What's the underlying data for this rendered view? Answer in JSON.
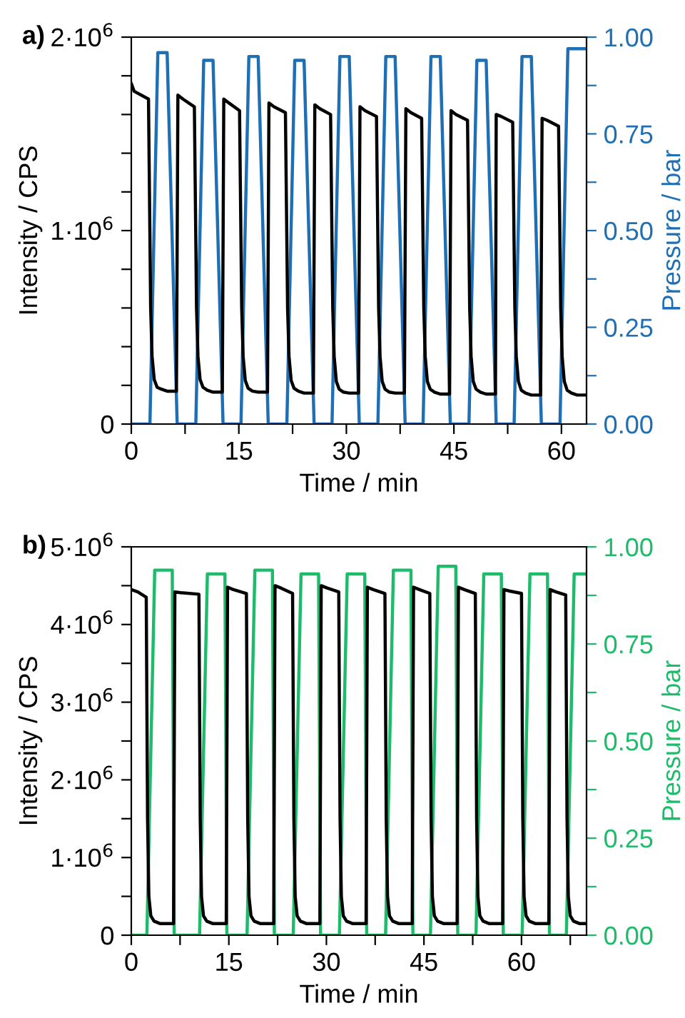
{
  "chart_data": [
    {
      "type": "line",
      "title": "a)",
      "xlabel": "Time / min",
      "ylabel": "Intensity / CPS",
      "y2label": "Pressure / bar",
      "xlim": [
        0,
        63.5
      ],
      "ylim": [
        0,
        2000000
      ],
      "y2lim": [
        0,
        1
      ],
      "xticks": [
        0,
        {
          "value": 7.5,
          "label": null
        },
        15,
        {
          "value": 22.5,
          "label": null
        },
        30,
        {
          "value": 37.5,
          "label": null
        },
        45,
        {
          "value": 52.5,
          "label": null
        },
        60
      ],
      "yticks": [
        0,
        {
          "value": 200000,
          "label": null
        },
        {
          "value": 400000,
          "label": null
        },
        {
          "value": 600000,
          "label": null
        },
        {
          "value": 800000,
          "label": null
        },
        {
          "value": 1000000,
          "label": "1·10$^{6}$"
        },
        {
          "value": 1200000,
          "label": null
        },
        {
          "value": 1400000,
          "label": null
        },
        {
          "value": 1600000,
          "label": null
        },
        {
          "value": 1800000,
          "label": null
        },
        {
          "value": 2000000,
          "label": "2·10$^{6}$"
        }
      ],
      "y2ticks": [
        {
          "value": 0,
          "label": "0.00"
        },
        {
          "value": 0.125,
          "label": null
        },
        {
          "value": 0.25,
          "label": "0.25"
        },
        {
          "value": 0.375,
          "label": null
        },
        {
          "value": 0.5,
          "label": "0.50"
        },
        {
          "value": 0.625,
          "label": null
        },
        {
          "value": 0.75,
          "label": "0.75"
        },
        {
          "value": 0.875,
          "label": null
        },
        {
          "value": 1,
          "label": "1.00"
        }
      ],
      "series": [
        {
          "color": "#000000",
          "x": [
            0,
            0.4,
            2.4,
            2.7,
            2.9,
            3.2,
            3.6,
            4.2,
            5.0,
            6.3,
            6.5,
            7.2,
            8.8,
            9.1,
            9.3,
            9.6,
            10.0,
            10.6,
            11.4,
            12.7,
            12.9,
            13.6,
            15.1,
            15.4,
            15.6,
            15.9,
            16.3,
            16.9,
            17.7,
            19.0,
            19.2,
            19.9,
            21.5,
            21.8,
            22.0,
            22.3,
            22.7,
            23.3,
            24.1,
            25.4,
            25.6,
            26.3,
            27.8,
            28.1,
            28.3,
            28.6,
            29.0,
            29.6,
            30.4,
            31.7,
            31.9,
            32.6,
            34.2,
            34.5,
            34.7,
            35.0,
            35.4,
            36.0,
            36.8,
            38.1,
            38.3,
            39.0,
            40.5,
            40.8,
            41.0,
            41.3,
            41.7,
            42.3,
            43.1,
            44.4,
            44.6,
            45.3,
            46.9,
            47.2,
            47.4,
            47.7,
            48.1,
            48.7,
            49.5,
            50.8,
            50.9,
            51.6,
            53.2,
            53.5,
            53.7,
            54.0,
            54.4,
            55.0,
            55.8,
            57.1,
            57.3,
            58.0,
            59.6,
            59.9,
            60.1,
            60.4,
            60.8,
            61.4,
            62.2,
            63.5
          ],
          "values": [
            1760000,
            1720000,
            1680000,
            600000,
            350000,
            230000,
            190000,
            180000,
            170000,
            170000,
            1700000,
            1680000,
            1640000,
            600000,
            350000,
            230000,
            190000,
            175000,
            165000,
            165000,
            1680000,
            1660000,
            1620000,
            600000,
            350000,
            225000,
            185000,
            170000,
            165000,
            165000,
            1660000,
            1640000,
            1610000,
            600000,
            350000,
            225000,
            185000,
            170000,
            160000,
            160000,
            1650000,
            1630000,
            1600000,
            600000,
            350000,
            220000,
            180000,
            165000,
            160000,
            160000,
            1640000,
            1620000,
            1590000,
            600000,
            350000,
            220000,
            180000,
            165000,
            160000,
            160000,
            1630000,
            1610000,
            1580000,
            600000,
            350000,
            220000,
            180000,
            165000,
            155000,
            155000,
            1620000,
            1600000,
            1570000,
            600000,
            350000,
            220000,
            180000,
            165000,
            155000,
            155000,
            1600000,
            1590000,
            1560000,
            600000,
            350000,
            220000,
            175000,
            160000,
            150000,
            150000,
            1580000,
            1570000,
            1540000,
            600000,
            350000,
            220000,
            175000,
            160000,
            150000,
            150000
          ]
        },
        {
          "color": "#1f6fb4",
          "axis": "y2",
          "x": [
            0,
            2.6,
            3.7,
            5.0,
            6.4,
            9.0,
            10.1,
            11.4,
            12.8,
            15.3,
            16.4,
            17.7,
            19.1,
            21.7,
            22.8,
            24.1,
            25.5,
            28.0,
            29.1,
            30.4,
            31.8,
            34.4,
            35.5,
            36.8,
            38.2,
            40.7,
            41.8,
            43.1,
            44.5,
            47.1,
            48.2,
            49.5,
            50.9,
            53.4,
            54.5,
            55.8,
            57.2,
            59.8,
            60.9,
            63.5
          ],
          "values": [
            0,
            0,
            0.96,
            0.96,
            0,
            0,
            0.94,
            0.94,
            0,
            0,
            0.95,
            0.95,
            0,
            0,
            0.94,
            0.94,
            0,
            0,
            0.95,
            0.95,
            0,
            0,
            0.95,
            0.95,
            0,
            0,
            0.95,
            0.95,
            0,
            0,
            0.94,
            0.94,
            0,
            0,
            0.95,
            0.95,
            0,
            0,
            0.97,
            0.97
          ]
        }
      ]
    },
    {
      "type": "line",
      "title": "b)",
      "xlabel": "Time / min",
      "ylabel": "Intensity / CPS",
      "y2label": "Pressure / bar",
      "xlim": [
        0,
        70
      ],
      "ylim": [
        0,
        5000000
      ],
      "y2lim": [
        0,
        1
      ],
      "xticks": [
        0,
        {
          "value": 7.5,
          "label": null
        },
        15,
        {
          "value": 22.5,
          "label": null
        },
        30,
        {
          "value": 37.5,
          "label": null
        },
        45,
        {
          "value": 52.5,
          "label": null
        },
        60,
        {
          "value": 67.5,
          "label": null
        }
      ],
      "yticks": [
        0,
        {
          "value": 500000,
          "label": null
        },
        {
          "value": 1000000,
          "label": "1·10$^{6}$"
        },
        {
          "value": 1500000,
          "label": null
        },
        {
          "value": 2000000,
          "label": "2·10$^{6}$"
        },
        {
          "value": 2500000,
          "label": null
        },
        {
          "value": 3000000,
          "label": "3·10$^{6}$"
        },
        {
          "value": 3500000,
          "label": null
        },
        {
          "value": 4000000,
          "label": "4·10$^{6}$"
        },
        {
          "value": 4500000,
          "label": null
        },
        {
          "value": 5000000,
          "label": "5·10$^{6}$"
        }
      ],
      "y2ticks": [
        {
          "value": 0,
          "label": "0.00"
        },
        {
          "value": 0.125,
          "label": null
        },
        {
          "value": 0.25,
          "label": "0.25"
        },
        {
          "value": 0.375,
          "label": null
        },
        {
          "value": 0.5,
          "label": "0.50"
        },
        {
          "value": 0.625,
          "label": null
        },
        {
          "value": 0.75,
          "label": "0.75"
        },
        {
          "value": 0.875,
          "label": null
        },
        {
          "value": 1,
          "label": "1.00"
        }
      ],
      "series": [
        {
          "color": "#000000",
          "x": [
            0,
            1.0,
            2.3,
            2.5,
            2.7,
            3.0,
            3.5,
            4.4,
            6.5,
            6.7,
            7.6,
            10.4,
            10.6,
            10.8,
            11.1,
            11.6,
            12.5,
            14.6,
            14.8,
            15.7,
            17.7,
            17.9,
            18.1,
            18.4,
            18.9,
            19.8,
            21.9,
            22.1,
            23.0,
            24.8,
            25.0,
            25.2,
            25.5,
            26.0,
            26.9,
            29.0,
            29.2,
            30.1,
            31.9,
            32.1,
            32.3,
            32.6,
            33.1,
            34.0,
            36.1,
            36.3,
            37.2,
            39.0,
            39.2,
            39.4,
            39.7,
            40.2,
            41.1,
            43.2,
            43.4,
            44.3,
            45.9,
            46.1,
            46.3,
            46.6,
            47.1,
            48.0,
            50.1,
            50.3,
            51.2,
            52.9,
            53.1,
            53.3,
            53.6,
            54.1,
            55.0,
            57.1,
            57.3,
            58.2,
            60.0,
            60.2,
            60.4,
            60.7,
            61.2,
            62.1,
            64.2,
            64.4,
            65.3,
            66.8,
            67.0,
            67.2,
            67.5,
            68.0,
            68.9,
            70
          ],
          "values": [
            4450000,
            4420000,
            4350000,
            1500000,
            500000,
            250000,
            180000,
            150000,
            150000,
            4420000,
            4410000,
            4390000,
            1500000,
            500000,
            250000,
            180000,
            150000,
            150000,
            4480000,
            4450000,
            4400000,
            1500000,
            500000,
            250000,
            180000,
            150000,
            150000,
            4500000,
            4470000,
            4400000,
            1500000,
            500000,
            250000,
            180000,
            150000,
            150000,
            4500000,
            4470000,
            4420000,
            1500000,
            500000,
            250000,
            180000,
            150000,
            150000,
            4480000,
            4450000,
            4400000,
            1500000,
            500000,
            250000,
            180000,
            150000,
            150000,
            4480000,
            4450000,
            4400000,
            1500000,
            500000,
            250000,
            180000,
            150000,
            150000,
            4480000,
            4450000,
            4400000,
            1500000,
            500000,
            250000,
            180000,
            150000,
            150000,
            4450000,
            4430000,
            4400000,
            1500000,
            500000,
            250000,
            180000,
            150000,
            150000,
            4450000,
            4420000,
            4380000,
            1500000,
            500000,
            250000,
            180000,
            150000,
            150000
          ]
        },
        {
          "color": "#1dbb6a",
          "axis": "y2",
          "x": [
            0,
            2.4,
            3.6,
            6.3,
            6.6,
            10.5,
            11.7,
            14.4,
            14.7,
            17.8,
            19.0,
            21.7,
            22.0,
            24.9,
            26.1,
            28.8,
            29.1,
            32.0,
            33.2,
            35.9,
            36.2,
            39.1,
            40.3,
            43.0,
            43.3,
            46.0,
            47.2,
            49.9,
            50.2,
            53.0,
            54.2,
            56.9,
            57.2,
            60.1,
            61.3,
            64.0,
            64.3,
            66.9,
            68.1,
            70
          ],
          "values": [
            0,
            0,
            0.94,
            0.94,
            0,
            0,
            0.93,
            0.93,
            0,
            0,
            0.94,
            0.94,
            0,
            0,
            0.93,
            0.93,
            0,
            0,
            0.93,
            0.93,
            0,
            0,
            0.94,
            0.94,
            0,
            0,
            0.95,
            0.95,
            0,
            0,
            0.93,
            0.93,
            0,
            0,
            0.93,
            0.93,
            0,
            0,
            0.93,
            0.93
          ]
        }
      ]
    }
  ]
}
